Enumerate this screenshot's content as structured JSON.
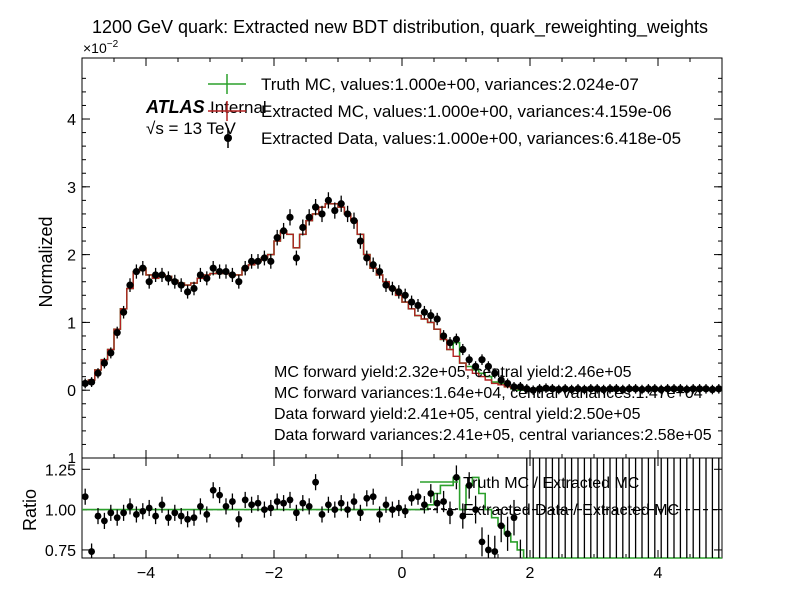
{
  "title": "1200 GeV quark: Extracted new BDT distribution, quark_reweighting_weights",
  "chart_data": {
    "type": "line",
    "top_panel": {
      "ylabel": "Normalized",
      "y_multiplier_base": "×10",
      "y_multiplier_exp": "−2",
      "xlim": [
        -5,
        5
      ],
      "ylim": [
        -1,
        4.9
      ],
      "yticks": [
        0,
        1,
        2,
        3,
        4
      ],
      "ytick_labels": [
        "0",
        "1",
        "2",
        "3",
        "4"
      ],
      "bottom_tick_label": "1",
      "x": [
        -4.95,
        -4.85,
        -4.75,
        -4.65,
        -4.55,
        -4.45,
        -4.35,
        -4.25,
        -4.15,
        -4.05,
        -3.95,
        -3.85,
        -3.75,
        -3.65,
        -3.55,
        -3.45,
        -3.35,
        -3.25,
        -3.15,
        -3.05,
        -2.95,
        -2.85,
        -2.75,
        -2.65,
        -2.55,
        -2.45,
        -2.35,
        -2.25,
        -2.15,
        -2.05,
        -1.95,
        -1.85,
        -1.75,
        -1.65,
        -1.55,
        -1.45,
        -1.35,
        -1.25,
        -1.15,
        -1.05,
        -0.95,
        -0.85,
        -0.75,
        -0.65,
        -0.55,
        -0.45,
        -0.35,
        -0.25,
        -0.15,
        -0.05,
        0.05,
        0.15,
        0.25,
        0.35,
        0.45,
        0.55,
        0.65,
        0.75,
        0.85,
        0.95,
        1.05,
        1.15,
        1.25,
        1.35,
        1.45,
        1.55,
        1.65,
        1.75,
        1.85,
        1.95,
        2.05,
        2.15,
        2.25,
        2.35,
        2.45,
        2.55,
        2.65,
        2.75,
        2.85,
        2.95,
        3.05,
        3.15,
        3.25,
        3.35,
        3.45,
        3.55,
        3.65,
        3.75,
        3.85,
        3.95,
        4.05,
        4.15,
        4.25,
        4.35,
        4.45,
        4.55,
        4.65,
        4.75,
        4.85,
        4.95
      ],
      "series": [
        {
          "name": "Truth MC, values:1.000e+00, variances:2.024e-07",
          "color": "#2ca02c",
          "values": [
            0.1,
            0.15,
            0.3,
            0.45,
            0.6,
            0.9,
            1.2,
            1.5,
            1.75,
            1.8,
            1.7,
            1.65,
            1.7,
            1.68,
            1.62,
            1.58,
            1.55,
            1.58,
            1.65,
            1.7,
            1.72,
            1.75,
            1.72,
            1.7,
            1.7,
            1.8,
            1.85,
            1.9,
            1.95,
            2.0,
            2.2,
            2.35,
            2.3,
            2.1,
            2.3,
            2.5,
            2.6,
            2.7,
            2.75,
            2.75,
            2.7,
            2.6,
            2.5,
            2.3,
            2.0,
            1.8,
            1.7,
            1.6,
            1.5,
            1.4,
            1.3,
            1.2,
            1.1,
            1.05,
            1.0,
            0.9,
            0.75,
            0.6,
            0.7,
            0.4,
            0.35,
            0.3,
            0.25,
            0.2,
            0.12,
            0.1,
            0.05,
            0.02,
            0.0,
            0.0,
            0.02,
            0.03,
            0.0,
            0.0,
            0.0,
            0.0,
            0.0,
            0.0,
            0.0,
            0.0,
            0.0,
            0.0,
            0.0,
            0.0,
            0.0,
            0.0,
            0.0,
            0.0,
            0.0,
            0.0,
            0.0,
            0.0,
            0.0,
            0.0,
            0.0,
            0.0,
            0.0,
            0.0,
            0.0,
            0.0
          ]
        },
        {
          "name": "Extracted MC, values:1.000e+00, variances:4.159e-06",
          "color": "#b22222",
          "values": [
            0.1,
            0.15,
            0.3,
            0.45,
            0.6,
            0.9,
            1.2,
            1.5,
            1.75,
            1.8,
            1.7,
            1.65,
            1.7,
            1.68,
            1.62,
            1.58,
            1.55,
            1.58,
            1.65,
            1.7,
            1.72,
            1.75,
            1.72,
            1.7,
            1.7,
            1.8,
            1.85,
            1.9,
            1.95,
            2.0,
            2.2,
            2.35,
            2.3,
            2.1,
            2.3,
            2.5,
            2.6,
            2.7,
            2.75,
            2.75,
            2.7,
            2.6,
            2.5,
            2.3,
            2.0,
            1.8,
            1.7,
            1.6,
            1.5,
            1.4,
            1.3,
            1.2,
            1.1,
            1.05,
            1.0,
            0.9,
            0.75,
            0.6,
            0.5,
            0.4,
            0.3,
            0.25,
            0.2,
            0.15,
            0.1,
            0.08,
            0.05,
            0.03,
            0.02,
            0.02,
            0.02,
            0.02,
            0.02,
            0.02,
            0.02,
            0.02,
            0.02,
            0.02,
            0.02,
            0.02,
            0.02,
            0.02,
            0.02,
            0.02,
            0.02,
            0.02,
            0.02,
            0.02,
            0.02,
            0.02,
            0.02,
            0.02,
            0.02,
            0.02,
            0.02,
            0.02,
            0.02,
            0.02,
            0.02,
            0.02
          ]
        },
        {
          "name": "Extracted Data, values:1.000e+00, variances:6.418e-05",
          "color": "#000000",
          "values": [
            0.1,
            0.12,
            0.25,
            0.4,
            0.55,
            0.85,
            1.15,
            1.55,
            1.75,
            1.8,
            1.6,
            1.7,
            1.7,
            1.65,
            1.6,
            1.55,
            1.45,
            1.5,
            1.7,
            1.65,
            1.8,
            1.75,
            1.75,
            1.7,
            1.6,
            1.8,
            1.9,
            1.9,
            1.95,
            1.9,
            2.25,
            2.35,
            2.55,
            1.95,
            2.4,
            2.55,
            2.7,
            2.6,
            2.8,
            2.65,
            2.75,
            2.6,
            2.5,
            2.2,
            1.95,
            1.85,
            1.75,
            1.55,
            1.5,
            1.45,
            1.4,
            1.3,
            1.25,
            1.15,
            1.1,
            1.05,
            0.8,
            0.7,
            0.75,
            0.6,
            0.45,
            0.35,
            0.45,
            0.35,
            0.25,
            0.15,
            0.1,
            0.05,
            0.05,
            0.02,
            0.0,
            0.02,
            0.03,
            0.02,
            0.01,
            0.02,
            0.01,
            0.02,
            0.01,
            0.02,
            0.02,
            0.01,
            0.02,
            0.02,
            0.01,
            0.02,
            0.02,
            0.01,
            0.02,
            0.02,
            0.01,
            0.02,
            0.02,
            0.02,
            0.01,
            0.02,
            0.02,
            0.02,
            0.01,
            0.02
          ]
        }
      ]
    },
    "ratio_panel": {
      "ylabel": "Ratio",
      "ylim": [
        0.7,
        1.32
      ],
      "yticks": [
        0.75,
        1.0,
        1.25
      ],
      "ytick_labels": [
        "0.75",
        "1.00",
        "1.25"
      ],
      "xticks": [
        -4,
        -2,
        0,
        2,
        4
      ],
      "xtick_labels": [
        "−4",
        "−2",
        "0",
        "2",
        "4"
      ],
      "series": [
        {
          "name": "Truth MC / Extracted MC",
          "color": "#2ca02c",
          "values": [
            1.0,
            1.0,
            1.0,
            1.0,
            1.0,
            1.0,
            1.0,
            1.0,
            1.0,
            1.0,
            1.0,
            1.0,
            1.0,
            1.0,
            1.0,
            1.0,
            1.0,
            1.0,
            1.0,
            1.0,
            1.0,
            1.0,
            1.0,
            1.0,
            1.0,
            1.0,
            1.0,
            1.0,
            1.0,
            1.0,
            1.0,
            1.0,
            1.0,
            1.0,
            1.0,
            1.0,
            1.0,
            1.0,
            1.0,
            1.0,
            1.0,
            1.0,
            1.0,
            1.0,
            1.0,
            1.0,
            1.0,
            1.0,
            1.0,
            1.0,
            1.0,
            1.0,
            1.0,
            1.0,
            1.03,
            1.1,
            1.15,
            1.15,
            1.2,
            1.0,
            1.15,
            1.2,
            1.1,
            1.0,
            0.95,
            0.9,
            0.85,
            0.8,
            0.75,
            0.7,
            0.7,
            0.7,
            0.7,
            0.7,
            0.7,
            0.7,
            0.7,
            0.7,
            0.7,
            0.7,
            0.7,
            0.7,
            0.7,
            0.7,
            0.7,
            0.7,
            0.7,
            0.7,
            0.7,
            0.7,
            0.7,
            0.7,
            0.7,
            0.7,
            0.7,
            0.7,
            0.7,
            0.7,
            0.7,
            0.7
          ]
        },
        {
          "name": "Extracted Data / Extracted MC",
          "color": "#000000",
          "values": [
            1.08,
            0.74,
            0.96,
            0.93,
            0.98,
            0.95,
            0.98,
            1.02,
            0.97,
            0.99,
            1.01,
            0.96,
            1.03,
            0.95,
            0.98,
            0.96,
            0.94,
            0.95,
            1.02,
            0.97,
            1.12,
            1.09,
            1.02,
            1.05,
            0.94,
            1.06,
            1.03,
            1.04,
            1.0,
            1.01,
            1.05,
            1.04,
            1.06,
            0.98,
            1.04,
            1.02,
            1.17,
            0.97,
            1.03,
            1.0,
            1.04,
            1.0,
            1.05,
            0.98,
            1.07,
            1.08,
            0.97,
            1.03,
            1.0,
            1.01,
            0.99,
            1.07,
            1.08,
            1.03,
            1.1,
            1.04,
            1.05,
            0.98,
            1.2,
            0.96,
            1.15,
            1.0,
            0.8,
            0.75,
            0.74,
            0.9,
            0.85,
            0.95,
            0.7,
            0.7,
            0.7,
            0.7,
            0.7,
            0.7,
            0.7,
            0.7,
            0.7,
            0.7,
            0.7,
            0.7,
            0.7,
            0.7,
            0.7,
            0.7,
            0.7,
            0.7,
            0.7,
            0.7,
            0.7,
            0.7,
            0.7,
            0.7,
            0.7,
            0.7,
            0.7,
            0.7,
            0.7,
            0.7,
            0.7,
            0.7
          ]
        }
      ]
    },
    "legend_placement": "top-right",
    "ratio_legend_placement": "right"
  },
  "atlas": {
    "brand": "ATLAS",
    "tag": "Internal",
    "energy": "√s = 13 TeV"
  },
  "annotations": [
    "MC forward yield:2.32e+05, central yield:2.46e+05",
    "MC forward variances:1.64e+04, central variances:1.47e+04",
    "Data forward yield:2.41e+05, central yield:2.50e+05",
    "Data forward variances:2.41e+05, central variances:2.58e+05"
  ]
}
